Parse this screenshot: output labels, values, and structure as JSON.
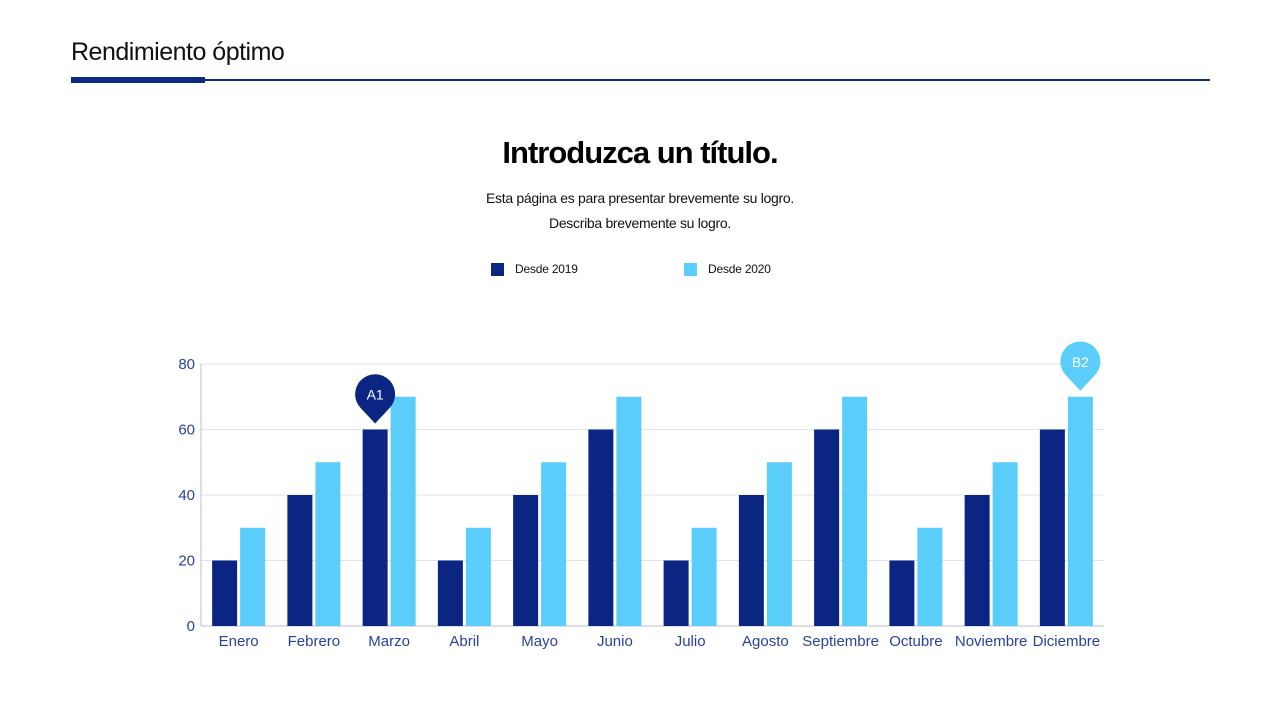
{
  "header": {
    "title": "Rendimiento óptimo"
  },
  "chart_data": {
    "type": "bar",
    "title": "Introduzca un título.",
    "subtitle_lines": [
      "Esta página es para presentar brevemente su logro.",
      "Describa brevemente su logro."
    ],
    "xlabel": "",
    "ylabel": "",
    "ylim": [
      0,
      80
    ],
    "yticks": [
      0,
      20,
      40,
      60,
      80
    ],
    "grid": true,
    "legend_position": "top-center",
    "categories": [
      "Enero",
      "Febrero",
      "Marzo",
      "Abril",
      "Mayo",
      "Junio",
      "Julio",
      "Agosto",
      "Septiembre",
      "Octubre",
      "Noviembre",
      "Diciembre"
    ],
    "series": [
      {
        "name": "Desde 2019",
        "color": "#0b2582",
        "values": [
          20,
          40,
          60,
          20,
          40,
          60,
          20,
          40,
          60,
          20,
          40,
          60
        ]
      },
      {
        "name": "Desde 2020",
        "color": "#5bcdfa",
        "values": [
          30,
          50,
          70,
          30,
          50,
          70,
          30,
          50,
          70,
          30,
          50,
          70
        ]
      }
    ],
    "annotations": [
      {
        "label": "A1",
        "category": "Marzo",
        "series": 0,
        "color": "#0b2582"
      },
      {
        "label": "B2",
        "category": "Diciembre",
        "series": 1,
        "color": "#5bcdfa"
      }
    ]
  }
}
